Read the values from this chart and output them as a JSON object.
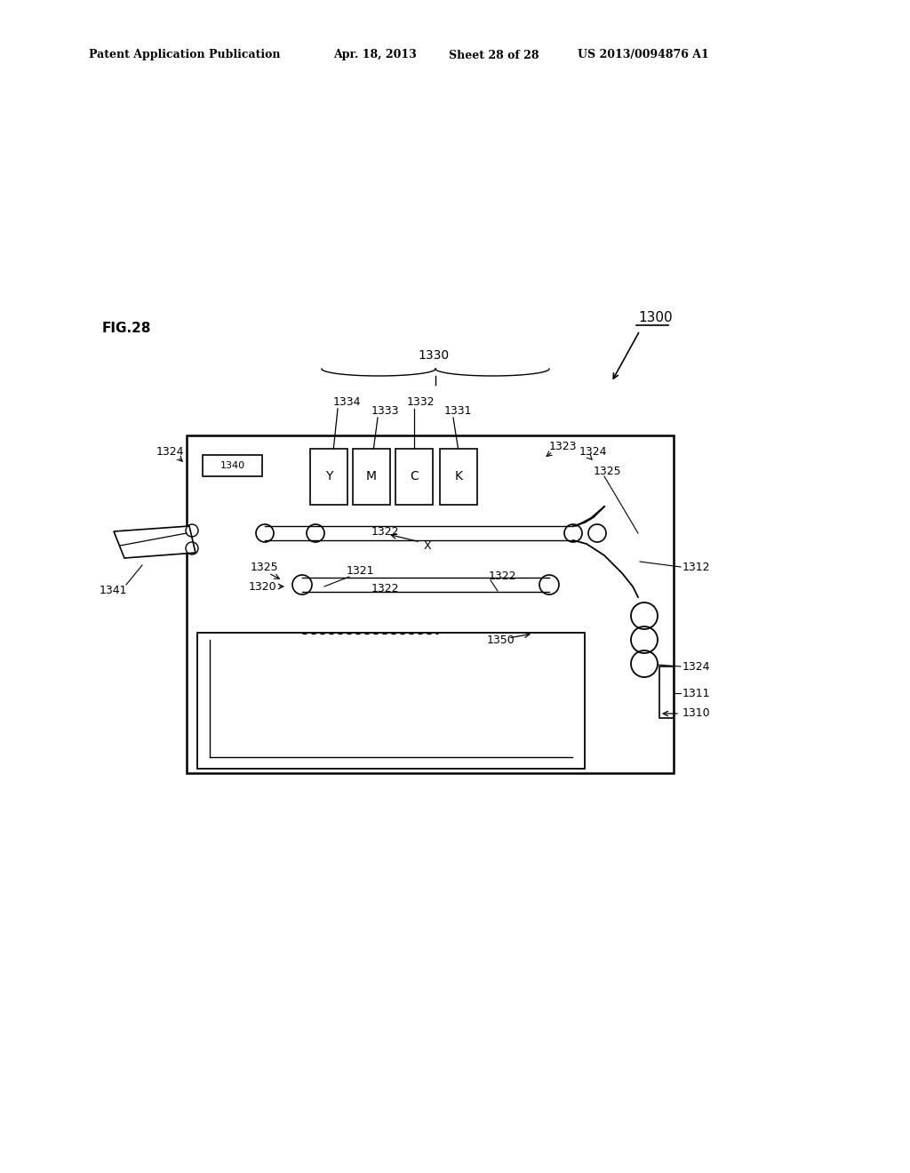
{
  "bg_color": "#ffffff",
  "header_text": "Patent Application Publication",
  "header_date": "Apr. 18, 2013",
  "header_sheet": "Sheet 28 of 28",
  "header_patent": "US 2013/0094876 A1",
  "fig_label": "FIG.28",
  "ref_1300": "1300",
  "ref_1330": "1330",
  "ref_1340": "1340",
  "ref_1341": "1341",
  "ref_1310": "1310",
  "ref_1311": "1311",
  "ref_1312": "1312",
  "ref_1320": "1320",
  "ref_1321": "1321",
  "ref_1322a": "1322",
  "ref_1322b": "1322",
  "ref_1322c": "1322",
  "ref_1323": "1323",
  "ref_1324a": "1324",
  "ref_1324b": "1324",
  "ref_1324c": "1324",
  "ref_1325a": "1325",
  "ref_1325b": "1325",
  "ref_1331": "1331",
  "ref_1332": "1332",
  "ref_1333": "1333",
  "ref_1334": "1334",
  "ref_1350": "1350",
  "ref_X": "X",
  "toner_labels": [
    "Y",
    "M",
    "C",
    "K"
  ]
}
